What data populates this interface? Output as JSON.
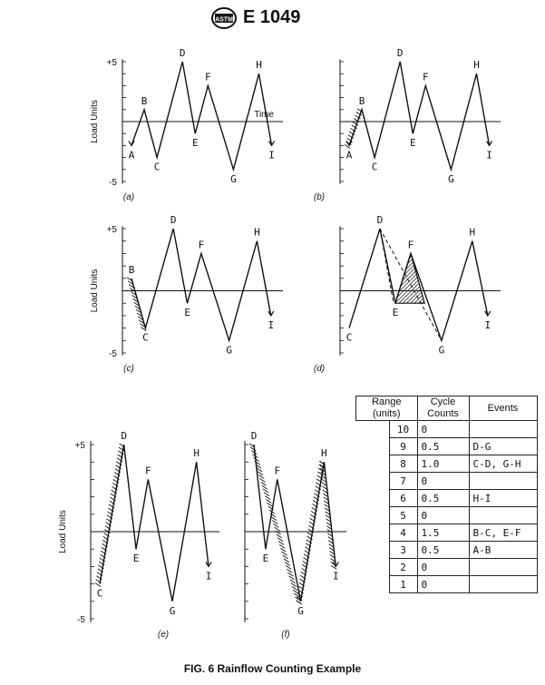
{
  "header": {
    "document_number": "E 1049",
    "logo": "astm-logo"
  },
  "axis": {
    "ylabel": "Load Units",
    "plus_label": "+5",
    "minus_label": "-5",
    "time_label": "Time"
  },
  "panels": [
    {
      "id": "a",
      "letter": "(a)"
    },
    {
      "id": "b",
      "letter": "(b)"
    },
    {
      "id": "c",
      "letter": "(c)"
    },
    {
      "id": "d",
      "letter": "(d)"
    },
    {
      "id": "e",
      "letter": "(e)"
    },
    {
      "id": "f",
      "letter": "(f)"
    }
  ],
  "points": [
    "A",
    "B",
    "C",
    "D",
    "E",
    "F",
    "G",
    "H",
    "I"
  ],
  "table": {
    "headers": {
      "range": "Range\n(units)",
      "cycles": "Cycle\nCounts",
      "events": "Events"
    },
    "rows": [
      {
        "range": "10",
        "cycles": "0",
        "events": ""
      },
      {
        "range": "9",
        "cycles": "0.5",
        "events": "D-G"
      },
      {
        "range": "8",
        "cycles": "1.0",
        "events": "C-D, G-H"
      },
      {
        "range": "7",
        "cycles": "0",
        "events": ""
      },
      {
        "range": "6",
        "cycles": "0.5",
        "events": "H-I"
      },
      {
        "range": "5",
        "cycles": "0",
        "events": ""
      },
      {
        "range": "4",
        "cycles": "1.5",
        "events": "B-C, E-F"
      },
      {
        "range": "3",
        "cycles": "0.5",
        "events": "A-B"
      },
      {
        "range": "2",
        "cycles": "0",
        "events": ""
      },
      {
        "range": "1",
        "cycles": "0",
        "events": ""
      }
    ]
  },
  "caption": "FIG. 6 Rainflow Counting Example"
}
